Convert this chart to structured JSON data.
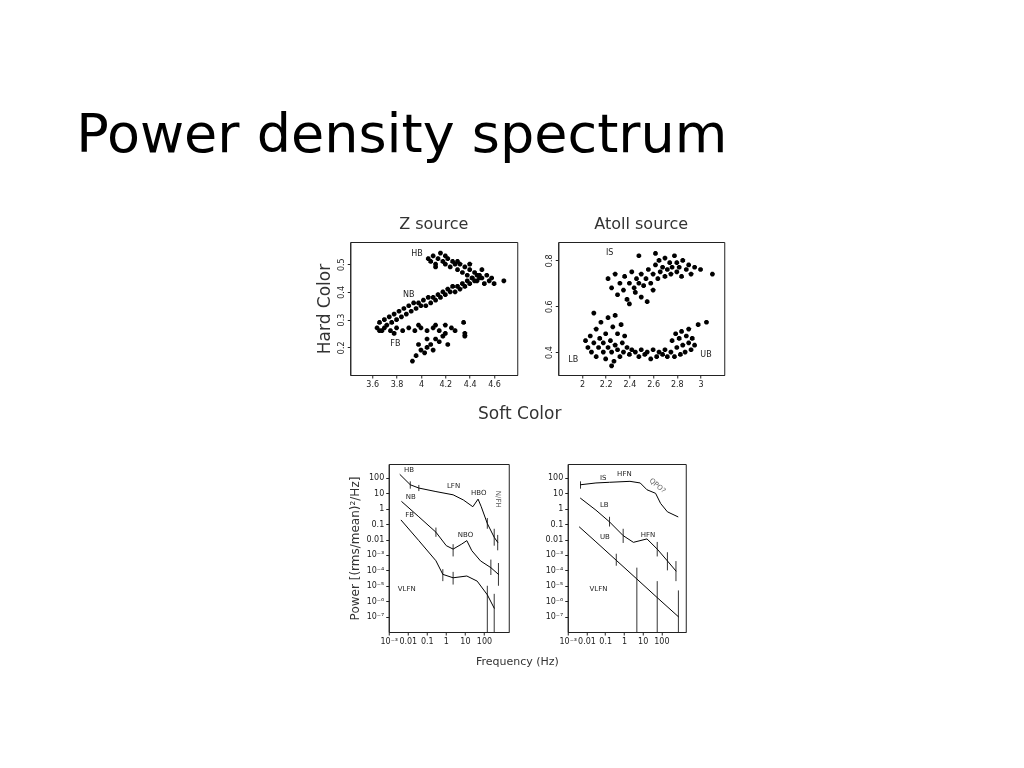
{
  "chart_data": [
    {
      "type": "other",
      "title": "Power density spectrum"
    },
    {
      "type": "scatter",
      "title": "Z source",
      "xlabel": "Soft Color",
      "ylabel": "Hard Color",
      "xlim": [
        3.42,
        4.79
      ],
      "ylim": [
        0.1,
        0.58
      ],
      "xticks": [
        3.6,
        3.8,
        4,
        4.2,
        4.4,
        4.6
      ],
      "yticks": [
        0.2,
        0.3,
        0.4,
        0.5
      ],
      "series": [
        {
          "color": "#000000",
          "x": [
            4.06,
            4.08,
            4.1,
            4.12,
            4.14,
            4.16,
            4.18,
            4.2,
            4.22,
            4.24,
            4.26,
            4.28,
            4.3,
            4.32,
            4.34,
            4.36,
            4.38,
            4.4,
            4.42,
            4.44,
            4.46,
            4.48,
            4.5,
            4.52,
            4.54,
            4.56,
            4.58,
            4.6,
            4.68,
            4.12,
            4.2,
            4.3,
            4.4,
            4.5,
            3.64,
            3.66,
            3.68,
            3.7,
            3.72,
            3.74,
            3.76,
            3.78,
            3.8,
            3.82,
            3.84,
            3.86,
            3.88,
            3.9,
            3.92,
            3.94,
            3.96,
            3.98,
            4.0,
            4.02,
            4.04,
            4.06,
            4.08,
            4.1,
            4.12,
            4.14,
            4.16,
            4.18,
            4.2,
            4.22,
            4.24,
            4.26,
            4.28,
            4.3,
            4.32,
            4.34,
            4.36,
            4.38,
            4.4,
            4.42,
            4.44,
            4.46,
            4.48,
            3.66,
            3.7,
            3.75,
            3.8,
            3.85,
            3.9,
            3.95,
            4.0,
            4.05,
            4.1,
            4.15,
            4.2,
            4.25,
            4.28,
            3.78,
            3.98,
            4.12,
            4.35,
            3.93,
            3.96,
            4.0,
            4.03,
            4.05,
            4.08,
            4.1,
            4.12,
            4.15,
            4.18,
            4.2,
            4.05,
            4.36,
            4.36,
            3.98,
            4.22
          ],
          "values": [
            0.52,
            0.51,
            0.53,
            0.5,
            0.52,
            0.54,
            0.51,
            0.5,
            0.52,
            0.49,
            0.51,
            0.5,
            0.48,
            0.5,
            0.47,
            0.49,
            0.46,
            0.48,
            0.45,
            0.47,
            0.44,
            0.46,
            0.45,
            0.43,
            0.46,
            0.44,
            0.45,
            0.43,
            0.44,
            0.49,
            0.53,
            0.51,
            0.5,
            0.48,
            0.27,
            0.29,
            0.26,
            0.3,
            0.28,
            0.31,
            0.29,
            0.32,
            0.3,
            0.33,
            0.31,
            0.34,
            0.32,
            0.35,
            0.33,
            0.36,
            0.34,
            0.36,
            0.35,
            0.37,
            0.35,
            0.38,
            0.36,
            0.38,
            0.37,
            0.39,
            0.38,
            0.4,
            0.39,
            0.41,
            0.4,
            0.42,
            0.4,
            0.42,
            0.41,
            0.43,
            0.42,
            0.44,
            0.43,
            0.45,
            0.44,
            0.46,
            0.45,
            0.26,
            0.27,
            0.26,
            0.27,
            0.26,
            0.27,
            0.26,
            0.27,
            0.26,
            0.27,
            0.26,
            0.28,
            0.27,
            0.26,
            0.25,
            0.28,
            0.28,
            0.29,
            0.15,
            0.17,
            0.19,
            0.18,
            0.2,
            0.21,
            0.19,
            0.23,
            0.22,
            0.24,
            0.25,
            0.23,
            0.25,
            0.24,
            0.21,
            0.21
          ]
        }
      ],
      "annotations": [
        "HB",
        "NB",
        "FB"
      ]
    },
    {
      "type": "scatter",
      "title": "Atoll source",
      "xlim": [
        1.8,
        3.2
      ],
      "ylim": [
        0.3,
        0.88
      ],
      "xticks": [
        2,
        2.2,
        2.4,
        2.6,
        2.8,
        3
      ],
      "yticks": [
        0.4,
        0.6,
        0.8
      ],
      "series": [
        {
          "color": "#000000",
          "x": [
            2.22,
            2.25,
            2.28,
            2.3,
            2.32,
            2.35,
            2.36,
            2.38,
            2.4,
            2.42,
            2.44,
            2.45,
            2.46,
            2.48,
            2.5,
            2.5,
            2.52,
            2.54,
            2.55,
            2.56,
            2.58,
            2.6,
            2.6,
            2.62,
            2.64,
            2.65,
            2.66,
            2.68,
            2.7,
            2.7,
            2.72,
            2.74,
            2.75,
            2.76,
            2.78,
            2.8,
            2.8,
            2.82,
            2.84,
            2.85,
            2.88,
            2.9,
            2.92,
            2.95,
            3.0,
            3.1,
            2.48,
            2.62,
            2.4,
            2.03,
            2.05,
            2.07,
            2.08,
            2.1,
            2.12,
            2.12,
            2.14,
            2.15,
            2.16,
            2.18,
            2.18,
            2.2,
            2.2,
            2.22,
            2.22,
            2.24,
            2.25,
            2.26,
            2.27,
            2.28,
            2.28,
            2.3,
            2.3,
            2.32,
            2.33,
            2.34,
            2.35,
            2.36,
            2.38,
            2.4,
            2.42,
            2.1,
            2.25,
            2.45,
            2.48,
            2.5,
            2.53,
            2.55,
            2.58,
            2.6,
            2.63,
            2.65,
            2.68,
            2.7,
            2.72,
            2.75,
            2.76,
            2.78,
            2.79,
            2.8,
            2.82,
            2.83,
            2.84,
            2.85,
            2.87,
            2.88,
            2.9,
            2.9,
            2.92,
            2.93,
            2.95,
            2.98,
            3.05
          ],
          "values": [
            0.72,
            0.68,
            0.74,
            0.65,
            0.7,
            0.67,
            0.73,
            0.63,
            0.7,
            0.75,
            0.68,
            0.66,
            0.72,
            0.7,
            0.74,
            0.64,
            0.69,
            0.72,
            0.62,
            0.76,
            0.7,
            0.67,
            0.74,
            0.78,
            0.72,
            0.8,
            0.75,
            0.77,
            0.73,
            0.81,
            0.76,
            0.79,
            0.74,
            0.77,
            0.82,
            0.75,
            0.79,
            0.77,
            0.73,
            0.8,
            0.76,
            0.78,
            0.74,
            0.77,
            0.76,
            0.74,
            0.82,
            0.83,
            0.61,
            0.45,
            0.42,
            0.47,
            0.4,
            0.44,
            0.38,
            0.5,
            0.42,
            0.46,
            0.53,
            0.4,
            0.44,
            0.37,
            0.48,
            0.42,
            0.55,
            0.45,
            0.4,
            0.51,
            0.36,
            0.43,
            0.56,
            0.41,
            0.48,
            0.38,
            0.52,
            0.44,
            0.4,
            0.47,
            0.42,
            0.39,
            0.41,
            0.57,
            0.34,
            0.4,
            0.38,
            0.41,
            0.39,
            0.4,
            0.37,
            0.41,
            0.38,
            0.4,
            0.39,
            0.41,
            0.38,
            0.4,
            0.45,
            0.38,
            0.48,
            0.42,
            0.46,
            0.39,
            0.49,
            0.43,
            0.4,
            0.47,
            0.44,
            0.5,
            0.41,
            0.46,
            0.43,
            0.52,
            0.53
          ]
        }
      ],
      "annotations": [
        "IS",
        "LB",
        "UB"
      ]
    },
    {
      "type": "line",
      "xlabel": "Frequency (Hz)",
      "ylabel": "Power [(rms/mean)²/Hz]",
      "log": "xy",
      "xlim": [
        0.001,
        2000
      ],
      "ylim": [
        1e-08,
        800
      ],
      "xticks": [
        {
          "value": 0.001,
          "label": "10⁻³"
        },
        0.01,
        0.1,
        1,
        10,
        100
      ],
      "yticks": [
        {
          "value": 1e-07,
          "label": "10⁻⁷"
        },
        {
          "value": 1e-06,
          "label": "10⁻⁶"
        },
        {
          "value": 1e-05,
          "label": "10⁻⁵"
        },
        {
          "value": 0.0001,
          "label": "10⁻⁴"
        },
        {
          "value": 0.001,
          "label": "10⁻³"
        },
        0.01,
        0.1,
        1,
        10,
        100
      ],
      "series": [
        {
          "name": "HB",
          "color": "#000000",
          "x": [
            0.0039,
            0.0135,
            0.038,
            0.3,
            2.4,
            8.3,
            26,
            49,
            72,
            150,
            345,
            525
          ],
          "values": [
            165,
            36,
            22,
            13,
            8,
            3.7,
            1.35,
            4.2,
            1.35,
            0.11,
            0.014,
            0.0066
          ],
          "errors": [
            null,
            [
              20,
              60
            ],
            [
              14,
              35
            ],
            null,
            null,
            null,
            null,
            null,
            null,
            [
              0.05,
              0.25
            ],
            [
              0.004,
              0.05
            ],
            [
              0.002,
              0.02
            ]
          ]
        },
        {
          "name": "NB",
          "color": "#000000",
          "x": [
            0.0048,
            0.038,
            0.3,
            1.05,
            2.4,
            6.8,
            12.6,
            23,
            66,
            230,
            575
          ],
          "values": [
            2.9,
            0.3,
            0.03,
            0.004,
            0.0024,
            0.0051,
            0.0085,
            0.0019,
            0.00041,
            0.00015,
            5.5e-05
          ],
          "errors": [
            null,
            null,
            [
              0.015,
              0.06
            ],
            null,
            [
              0.0008,
              0.005
            ],
            null,
            null,
            null,
            null,
            [
              5e-05,
              0.0005
            ],
            [
              1e-05,
              0.0003
            ]
          ]
        },
        {
          "name": "FB",
          "color": "#000000",
          "x": [
            0.0045,
            0.038,
            0.3,
            0.69,
            2.4,
            12.6,
            44,
            150,
            345
          ],
          "values": [
            0.18,
            0.0085,
            0.00042,
            5.5e-05,
            3.3e-05,
            4.3e-05,
            2e-05,
            2.6e-06,
            3.5e-07
          ],
          "errors": [
            null,
            null,
            null,
            [
              2e-05,
              0.00012
            ],
            [
              1.2e-05,
              8e-05
            ],
            null,
            null,
            [
              1e-08,
              1e-05
            ],
            [
              1e-08,
              3e-06
            ]
          ]
        }
      ],
      "annotations": [
        "LFN",
        "HBO",
        "N/FH",
        "NBO",
        "VLFN"
      ]
    },
    {
      "type": "line",
      "log": "xy",
      "xlim": [
        0.001,
        2000
      ],
      "ylim": [
        1e-08,
        800
      ],
      "xticks": [
        {
          "value": 0.001,
          "label": "10⁻³"
        },
        0.01,
        0.1,
        1,
        10,
        100
      ],
      "yticks": [
        {
          "value": 1e-07,
          "label": "10⁻⁷"
        },
        {
          "value": 1e-06,
          "label": "10⁻⁶"
        },
        {
          "value": 1e-05,
          "label": "10⁻⁵"
        },
        {
          "value": 0.0001,
          "label": "10⁻⁴"
        },
        {
          "value": 0.001,
          "label": "10⁻³"
        },
        0.01,
        0.1,
        1,
        10,
        100
      ],
      "series": [
        {
          "name": "IS",
          "color": "#000000",
          "x": [
            0.0048,
            0.032,
            0.17,
            2.1,
            7.4,
            17,
            49,
            91,
            210,
            760
          ],
          "values": [
            36,
            47,
            52,
            60,
            47,
            17,
            10,
            2.2,
            0.63,
            0.3
          ],
          "errors": [
            [
              20,
              60
            ],
            null,
            null,
            null,
            null,
            null,
            null,
            null,
            null,
            null
          ]
        },
        {
          "name": "LB",
          "color": "#000000",
          "x": [
            0.0048,
            0.032,
            0.17,
            0.91,
            3.2,
            17,
            60,
            210,
            600
          ],
          "values": [
            4.8,
            0.81,
            0.14,
            0.018,
            0.0066,
            0.011,
            0.0024,
            0.00041,
            9.1e-05
          ],
          "errors": [
            null,
            null,
            [
              0.07,
              0.3
            ],
            [
              0.006,
              0.05
            ],
            null,
            null,
            [
              0.0008,
              0.007
            ],
            [
              0.0001,
              0.0015
            ],
            [
              2e-05,
              0.0004
            ]
          ]
        },
        {
          "name": "UB",
          "color": "#000000",
          "x": [
            0.0042,
            0.032,
            0.39,
            4.9,
            60,
            810
          ],
          "values": [
            0.065,
            0.0071,
            0.00045,
            2.75e-05,
            1.7e-06,
            9.8e-08
          ],
          "errors": [
            null,
            null,
            [
              0.0002,
              0.0012
            ],
            [
              1e-08,
              0.00015
            ],
            [
              1e-08,
              2e-05
            ],
            [
              1e-08,
              5e-06
            ]
          ]
        }
      ],
      "annotations": [
        "HFN",
        "QPO?",
        "HFN",
        "VLFN"
      ]
    }
  ]
}
